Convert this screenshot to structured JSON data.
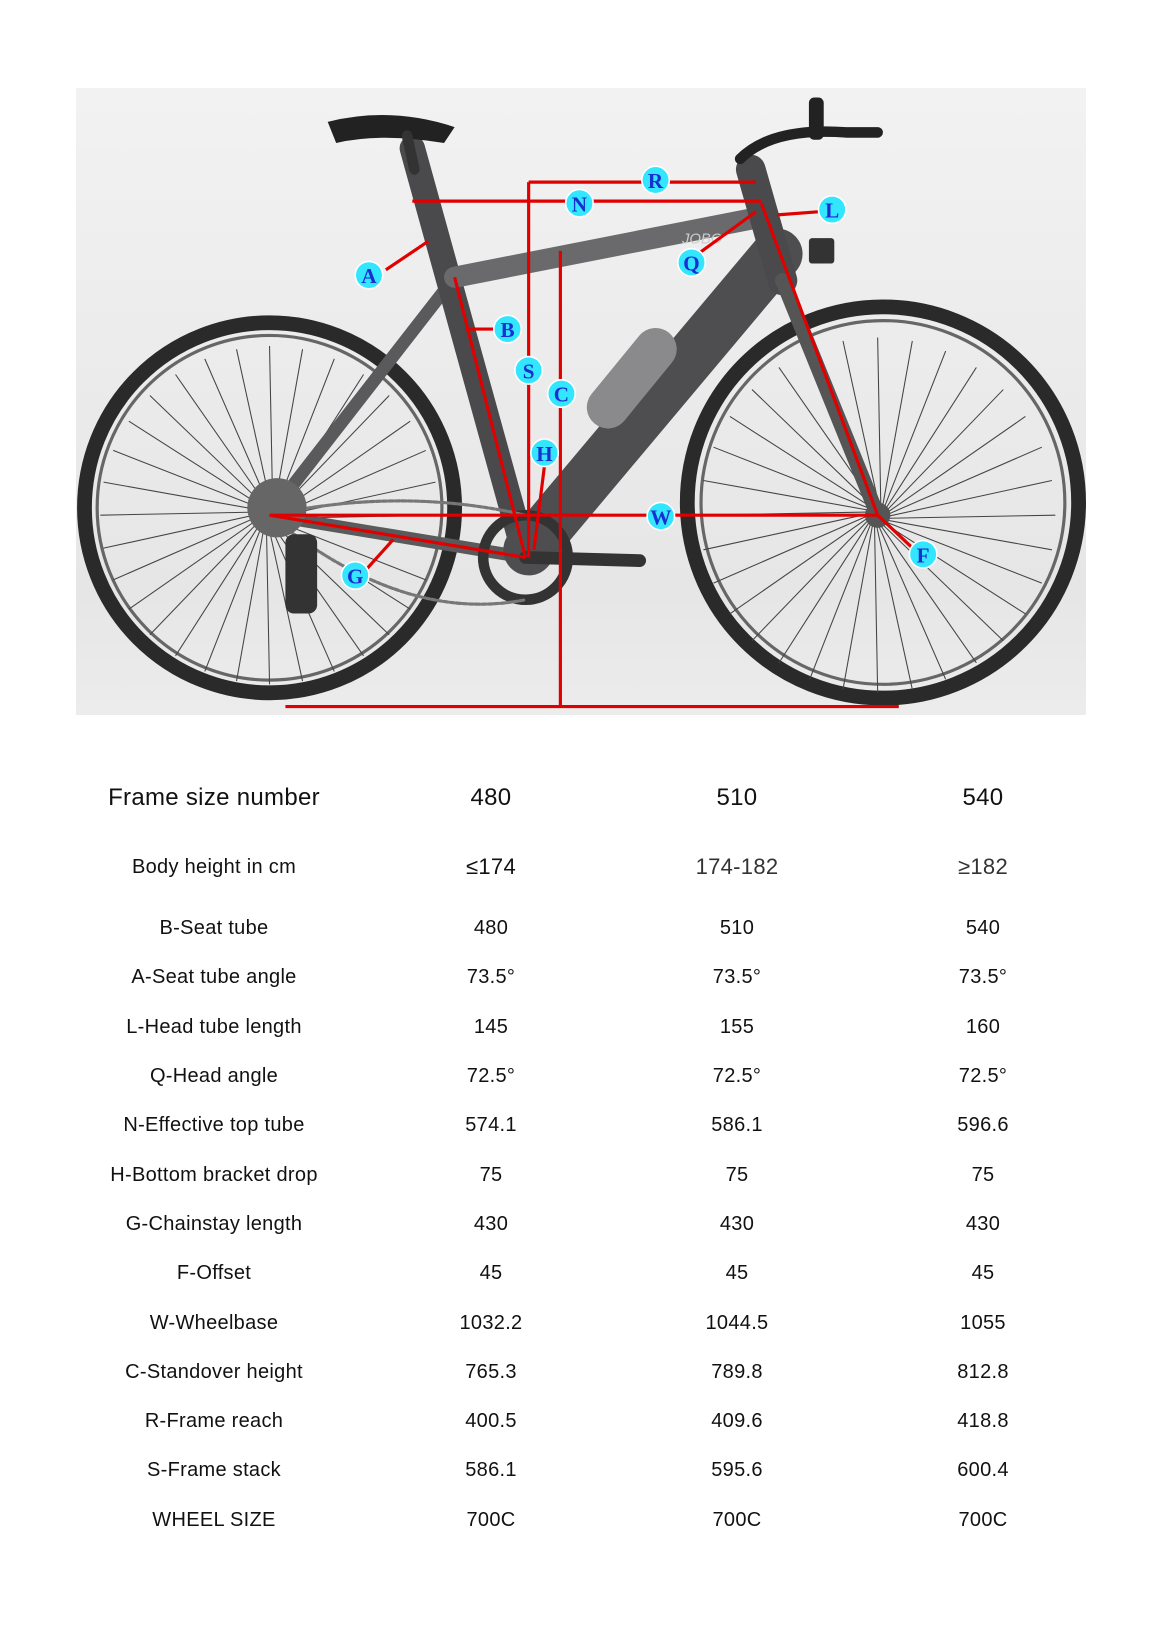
{
  "photo": {
    "labels": [
      "A",
      "B",
      "S",
      "C",
      "H",
      "W",
      "G",
      "F",
      "N",
      "R",
      "L",
      "Q"
    ],
    "brand": "JOBO",
    "line_color": "#e00000",
    "label_color": "#33e6ff"
  },
  "table": {
    "header": {
      "label": "Frame size number",
      "values": [
        "480",
        "510",
        "540"
      ]
    },
    "body_height": {
      "label": "Body height in cm",
      "values": [
        "≤174",
        "174-182",
        "≥182"
      ]
    },
    "rows": [
      {
        "label": "B-Seat tube",
        "values": [
          "480",
          "510",
          "540"
        ]
      },
      {
        "label": "A-Seat tube angle",
        "values": [
          "73.5°",
          "73.5°",
          "73.5°"
        ]
      },
      {
        "label": "L-Head tube length",
        "values": [
          "145",
          "155",
          "160"
        ]
      },
      {
        "label": "Q-Head angle",
        "values": [
          "72.5°",
          "72.5°",
          "72.5°"
        ]
      },
      {
        "label": "N-Effective top tube",
        "values": [
          "574.1",
          "586.1",
          "596.6"
        ]
      },
      {
        "label": "H-Bottom bracket drop",
        "values": [
          "75",
          "75",
          "75"
        ]
      },
      {
        "label": "G-Chainstay length",
        "values": [
          "430",
          "430",
          "430"
        ]
      },
      {
        "label": "F-Offset",
        "values": [
          "45",
          "45",
          "45"
        ]
      },
      {
        "label": "W-Wheelbase",
        "values": [
          "1032.2",
          "1044.5",
          "1055"
        ]
      },
      {
        "label": "C-Standover height",
        "values": [
          "765.3",
          "789.8",
          "812.8"
        ]
      },
      {
        "label": "R-Frame reach",
        "values": [
          "400.5",
          "409.6",
          "418.8"
        ]
      },
      {
        "label": "S-Frame stack",
        "values": [
          "586.1",
          "595.6",
          "600.4"
        ]
      },
      {
        "label": "WHEEL SIZE",
        "values": [
          "700C",
          "700C",
          "700C"
        ]
      }
    ]
  }
}
